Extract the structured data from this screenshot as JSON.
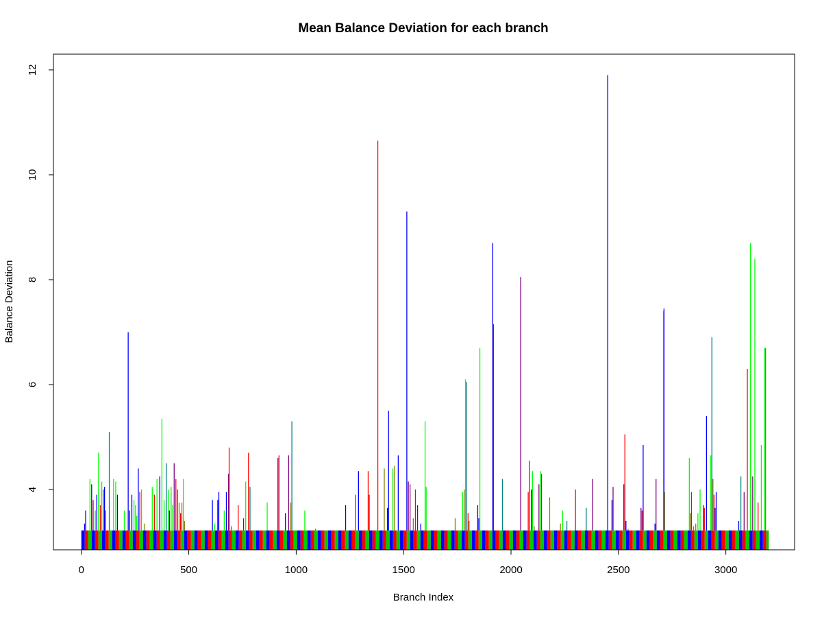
{
  "chart_data": {
    "type": "bar",
    "title": "Mean Balance Deviation for each branch",
    "xlabel": "Branch Index",
    "ylabel": "Balance Deviation",
    "xlim": [
      -130,
      3320
    ],
    "ylim": [
      2.85,
      12.3
    ],
    "x_ticks": [
      0,
      500,
      1000,
      1500,
      2000,
      2500,
      3000
    ],
    "y_ticks": [
      4,
      6,
      8,
      10,
      12
    ],
    "baseline_level": 3.22,
    "baseline_range": [
      0,
      3200
    ],
    "baseline_stripe_colors": [
      "#0000ff",
      "#ff0000",
      "#00cc00"
    ],
    "grid": false,
    "legend": "none",
    "series_colors": {
      "blue": "#0000ff",
      "red": "#ff0000",
      "green": "#00ff00",
      "purple": "#800080",
      "olive": "#808000",
      "teal": "#008080"
    },
    "spikes": [
      {
        "x": 15,
        "y": 3.35,
        "color": "blue"
      },
      {
        "x": 20,
        "y": 3.6,
        "color": "blue"
      },
      {
        "x": 40,
        "y": 4.2,
        "color": "green"
      },
      {
        "x": 48,
        "y": 4.1,
        "color": "blue"
      },
      {
        "x": 55,
        "y": 3.8,
        "color": "red"
      },
      {
        "x": 65,
        "y": 3.6,
        "color": "green"
      },
      {
        "x": 72,
        "y": 3.9,
        "color": "blue"
      },
      {
        "x": 80,
        "y": 4.7,
        "color": "green"
      },
      {
        "x": 88,
        "y": 3.7,
        "color": "red"
      },
      {
        "x": 95,
        "y": 4.15,
        "color": "green"
      },
      {
        "x": 102,
        "y": 4.0,
        "color": "red"
      },
      {
        "x": 108,
        "y": 4.05,
        "color": "blue"
      },
      {
        "x": 112,
        "y": 3.6,
        "color": "red"
      },
      {
        "x": 130,
        "y": 5.1,
        "color": "teal"
      },
      {
        "x": 150,
        "y": 4.2,
        "color": "green"
      },
      {
        "x": 160,
        "y": 4.15,
        "color": "green"
      },
      {
        "x": 168,
        "y": 3.9,
        "color": "blue"
      },
      {
        "x": 200,
        "y": 3.6,
        "color": "green"
      },
      {
        "x": 218,
        "y": 7.0,
        "color": "blue"
      },
      {
        "x": 225,
        "y": 3.6,
        "color": "blue"
      },
      {
        "x": 235,
        "y": 3.9,
        "color": "blue"
      },
      {
        "x": 245,
        "y": 3.8,
        "color": "green"
      },
      {
        "x": 252,
        "y": 3.7,
        "color": "green"
      },
      {
        "x": 258,
        "y": 3.5,
        "color": "green"
      },
      {
        "x": 265,
        "y": 4.4,
        "color": "blue"
      },
      {
        "x": 272,
        "y": 3.95,
        "color": "red"
      },
      {
        "x": 280,
        "y": 4.0,
        "color": "green"
      },
      {
        "x": 295,
        "y": 3.35,
        "color": "olive"
      },
      {
        "x": 330,
        "y": 4.05,
        "color": "green"
      },
      {
        "x": 340,
        "y": 3.9,
        "color": "red"
      },
      {
        "x": 352,
        "y": 4.2,
        "color": "green"
      },
      {
        "x": 365,
        "y": 4.25,
        "color": "blue"
      },
      {
        "x": 375,
        "y": 5.35,
        "color": "green"
      },
      {
        "x": 385,
        "y": 3.8,
        "color": "green"
      },
      {
        "x": 395,
        "y": 4.5,
        "color": "teal"
      },
      {
        "x": 405,
        "y": 4.0,
        "color": "green"
      },
      {
        "x": 410,
        "y": 3.6,
        "color": "blue"
      },
      {
        "x": 418,
        "y": 4.05,
        "color": "green"
      },
      {
        "x": 425,
        "y": 3.7,
        "color": "green"
      },
      {
        "x": 432,
        "y": 4.5,
        "color": "purple"
      },
      {
        "x": 440,
        "y": 4.2,
        "color": "red"
      },
      {
        "x": 448,
        "y": 4.0,
        "color": "red"
      },
      {
        "x": 455,
        "y": 3.75,
        "color": "olive"
      },
      {
        "x": 462,
        "y": 3.55,
        "color": "red"
      },
      {
        "x": 468,
        "y": 3.75,
        "color": "olive"
      },
      {
        "x": 475,
        "y": 4.2,
        "color": "green"
      },
      {
        "x": 480,
        "y": 3.4,
        "color": "olive"
      },
      {
        "x": 610,
        "y": 3.8,
        "color": "blue"
      },
      {
        "x": 620,
        "y": 3.35,
        "color": "green"
      },
      {
        "x": 635,
        "y": 3.8,
        "color": "blue"
      },
      {
        "x": 640,
        "y": 3.95,
        "color": "blue"
      },
      {
        "x": 665,
        "y": 3.6,
        "color": "green"
      },
      {
        "x": 675,
        "y": 3.95,
        "color": "blue"
      },
      {
        "x": 685,
        "y": 4.3,
        "color": "purple"
      },
      {
        "x": 688,
        "y": 4.8,
        "color": "red"
      },
      {
        "x": 700,
        "y": 3.3,
        "color": "teal"
      },
      {
        "x": 730,
        "y": 3.7,
        "color": "red"
      },
      {
        "x": 755,
        "y": 3.45,
        "color": "purple"
      },
      {
        "x": 765,
        "y": 4.15,
        "color": "green"
      },
      {
        "x": 778,
        "y": 4.7,
        "color": "red"
      },
      {
        "x": 785,
        "y": 4.05,
        "color": "teal"
      },
      {
        "x": 865,
        "y": 3.75,
        "color": "green"
      },
      {
        "x": 915,
        "y": 4.6,
        "color": "purple"
      },
      {
        "x": 920,
        "y": 4.65,
        "color": "red"
      },
      {
        "x": 950,
        "y": 3.55,
        "color": "blue"
      },
      {
        "x": 965,
        "y": 4.65,
        "color": "purple"
      },
      {
        "x": 975,
        "y": 3.75,
        "color": "olive"
      },
      {
        "x": 980,
        "y": 5.3,
        "color": "teal"
      },
      {
        "x": 1040,
        "y": 3.6,
        "color": "green"
      },
      {
        "x": 1090,
        "y": 3.25,
        "color": "olive"
      },
      {
        "x": 1230,
        "y": 3.7,
        "color": "blue"
      },
      {
        "x": 1275,
        "y": 3.9,
        "color": "red"
      },
      {
        "x": 1290,
        "y": 4.35,
        "color": "blue"
      },
      {
        "x": 1335,
        "y": 4.35,
        "color": "red"
      },
      {
        "x": 1340,
        "y": 3.9,
        "color": "red"
      },
      {
        "x": 1380,
        "y": 10.65,
        "color": "red"
      },
      {
        "x": 1410,
        "y": 4.4,
        "color": "olive"
      },
      {
        "x": 1425,
        "y": 3.65,
        "color": "blue"
      },
      {
        "x": 1430,
        "y": 5.5,
        "color": "blue"
      },
      {
        "x": 1450,
        "y": 4.4,
        "color": "green"
      },
      {
        "x": 1458,
        "y": 4.45,
        "color": "olive"
      },
      {
        "x": 1475,
        "y": 4.65,
        "color": "blue"
      },
      {
        "x": 1515,
        "y": 9.3,
        "color": "blue"
      },
      {
        "x": 1522,
        "y": 4.15,
        "color": "purple"
      },
      {
        "x": 1530,
        "y": 4.1,
        "color": "purple"
      },
      {
        "x": 1545,
        "y": 3.45,
        "color": "olive"
      },
      {
        "x": 1555,
        "y": 4.0,
        "color": "red"
      },
      {
        "x": 1565,
        "y": 3.7,
        "color": "purple"
      },
      {
        "x": 1580,
        "y": 3.35,
        "color": "blue"
      },
      {
        "x": 1600,
        "y": 5.3,
        "color": "green"
      },
      {
        "x": 1605,
        "y": 4.05,
        "color": "green"
      },
      {
        "x": 1740,
        "y": 3.45,
        "color": "olive"
      },
      {
        "x": 1775,
        "y": 3.95,
        "color": "green"
      },
      {
        "x": 1782,
        "y": 4.0,
        "color": "olive"
      },
      {
        "x": 1788,
        "y": 6.1,
        "color": "green"
      },
      {
        "x": 1792,
        "y": 6.05,
        "color": "teal"
      },
      {
        "x": 1800,
        "y": 3.55,
        "color": "red"
      },
      {
        "x": 1805,
        "y": 3.4,
        "color": "olive"
      },
      {
        "x": 1845,
        "y": 3.7,
        "color": "blue"
      },
      {
        "x": 1850,
        "y": 3.45,
        "color": "blue"
      },
      {
        "x": 1855,
        "y": 6.7,
        "color": "green"
      },
      {
        "x": 1915,
        "y": 8.7,
        "color": "blue"
      },
      {
        "x": 1918,
        "y": 7.15,
        "color": "purple"
      },
      {
        "x": 1960,
        "y": 4.2,
        "color": "teal"
      },
      {
        "x": 2045,
        "y": 8.05,
        "color": "purple"
      },
      {
        "x": 2080,
        "y": 3.95,
        "color": "red"
      },
      {
        "x": 2085,
        "y": 4.55,
        "color": "red"
      },
      {
        "x": 2095,
        "y": 4.0,
        "color": "blue"
      },
      {
        "x": 2100,
        "y": 4.35,
        "color": "green"
      },
      {
        "x": 2108,
        "y": 3.3,
        "color": "olive"
      },
      {
        "x": 2130,
        "y": 4.1,
        "color": "purple"
      },
      {
        "x": 2137,
        "y": 4.35,
        "color": "green"
      },
      {
        "x": 2142,
        "y": 4.3,
        "color": "red"
      },
      {
        "x": 2180,
        "y": 3.85,
        "color": "olive"
      },
      {
        "x": 2230,
        "y": 3.35,
        "color": "olive"
      },
      {
        "x": 2240,
        "y": 3.6,
        "color": "green"
      },
      {
        "x": 2260,
        "y": 3.4,
        "color": "teal"
      },
      {
        "x": 2300,
        "y": 4.0,
        "color": "red"
      },
      {
        "x": 2350,
        "y": 3.65,
        "color": "teal"
      },
      {
        "x": 2380,
        "y": 4.2,
        "color": "purple"
      },
      {
        "x": 2450,
        "y": 11.9,
        "color": "blue"
      },
      {
        "x": 2470,
        "y": 3.8,
        "color": "blue"
      },
      {
        "x": 2475,
        "y": 4.05,
        "color": "purple"
      },
      {
        "x": 2525,
        "y": 4.1,
        "color": "purple"
      },
      {
        "x": 2530,
        "y": 5.05,
        "color": "red"
      },
      {
        "x": 2535,
        "y": 3.4,
        "color": "blue"
      },
      {
        "x": 2545,
        "y": 3.25,
        "color": "olive"
      },
      {
        "x": 2605,
        "y": 3.65,
        "color": "purple"
      },
      {
        "x": 2610,
        "y": 3.6,
        "color": "red"
      },
      {
        "x": 2615,
        "y": 4.85,
        "color": "blue"
      },
      {
        "x": 2670,
        "y": 3.35,
        "color": "blue"
      },
      {
        "x": 2675,
        "y": 4.2,
        "color": "purple"
      },
      {
        "x": 2710,
        "y": 7.4,
        "color": "green"
      },
      {
        "x": 2712,
        "y": 7.45,
        "color": "blue"
      },
      {
        "x": 2715,
        "y": 3.95,
        "color": "olive"
      },
      {
        "x": 2830,
        "y": 4.6,
        "color": "green"
      },
      {
        "x": 2835,
        "y": 3.55,
        "color": "olive"
      },
      {
        "x": 2840,
        "y": 3.95,
        "color": "red"
      },
      {
        "x": 2850,
        "y": 3.3,
        "color": "olive"
      },
      {
        "x": 2860,
        "y": 3.35,
        "color": "olive"
      },
      {
        "x": 2870,
        "y": 3.55,
        "color": "green"
      },
      {
        "x": 2880,
        "y": 4.0,
        "color": "green"
      },
      {
        "x": 2895,
        "y": 3.7,
        "color": "purple"
      },
      {
        "x": 2900,
        "y": 3.65,
        "color": "red"
      },
      {
        "x": 2910,
        "y": 5.4,
        "color": "blue"
      },
      {
        "x": 2930,
        "y": 4.65,
        "color": "green"
      },
      {
        "x": 2935,
        "y": 6.9,
        "color": "teal"
      },
      {
        "x": 2940,
        "y": 4.2,
        "color": "olive"
      },
      {
        "x": 2945,
        "y": 3.9,
        "color": "red"
      },
      {
        "x": 2950,
        "y": 3.65,
        "color": "blue"
      },
      {
        "x": 2955,
        "y": 3.95,
        "color": "blue"
      },
      {
        "x": 3060,
        "y": 3.4,
        "color": "blue"
      },
      {
        "x": 3070,
        "y": 4.25,
        "color": "teal"
      },
      {
        "x": 3085,
        "y": 3.95,
        "color": "purple"
      },
      {
        "x": 3100,
        "y": 6.3,
        "color": "red"
      },
      {
        "x": 3115,
        "y": 8.7,
        "color": "green"
      },
      {
        "x": 3125,
        "y": 4.25,
        "color": "purple"
      },
      {
        "x": 3135,
        "y": 8.4,
        "color": "green"
      },
      {
        "x": 3150,
        "y": 3.75,
        "color": "red"
      },
      {
        "x": 3165,
        "y": 4.85,
        "color": "green"
      },
      {
        "x": 3180,
        "y": 6.7,
        "color": "green"
      },
      {
        "x": 3185,
        "y": 6.7,
        "color": "olive"
      }
    ]
  }
}
